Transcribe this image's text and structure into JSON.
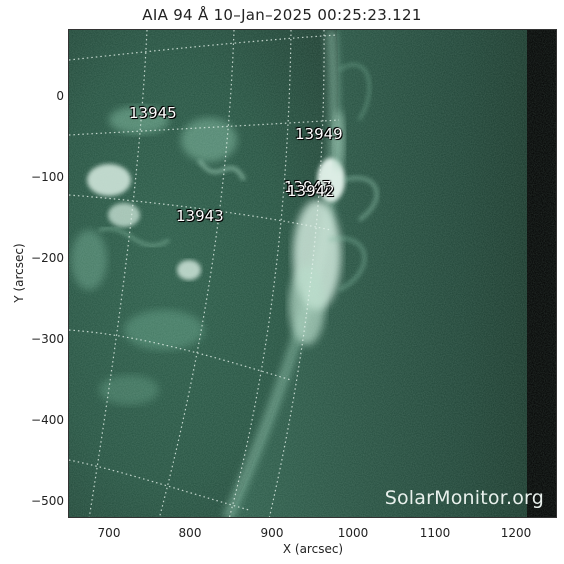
{
  "title": "AIA 94 Å 10–Jan–2025 00:25:23.121",
  "watermark": "SolarMonitor.org",
  "axes": {
    "xlabel": "X (arcsec)",
    "ylabel": "Y (arcsec)",
    "x_ticks": [
      "700",
      "800",
      "900",
      "1000",
      "1100",
      "1200"
    ],
    "y_ticks": [
      "0",
      "−100",
      "−200",
      "−300",
      "−400",
      "−500"
    ]
  },
  "active_regions": [
    {
      "id": "13945"
    },
    {
      "id": "13949"
    },
    {
      "id": "13947"
    },
    {
      "id": "13942"
    },
    {
      "id": "13943"
    }
  ],
  "colors": {
    "disk": "#2a5a47",
    "corona": "#1c3a2f",
    "bright": "#e6f3ec",
    "space": "#000000"
  }
}
